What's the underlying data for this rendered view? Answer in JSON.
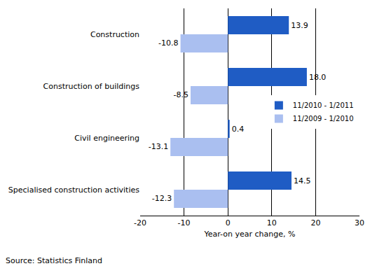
{
  "chart_data": {
    "type": "bar",
    "orientation": "horizontal",
    "categories": [
      "Construction",
      "Construction of buildings",
      "Civil engineering",
      "Specialised construction activities"
    ],
    "series": [
      {
        "name": "11/2010 - 1/2011",
        "color": "#1f5cc4",
        "values": [
          13.9,
          18.0,
          0.4,
          14.5
        ],
        "value_labels": [
          "13.9",
          "18.0",
          "0.4",
          "14.5"
        ]
      },
      {
        "name": "11/2009 - 1/2010",
        "color": "#aabff0",
        "values": [
          -10.8,
          -8.5,
          -13.1,
          -12.3
        ],
        "value_labels": [
          "-10.8",
          "-8.5",
          "-13.1",
          "-12.3"
        ]
      }
    ],
    "x_label": "Year-on year change, %",
    "annotations": [
      "Source: Statistics Finland"
    ],
    "xlim": [
      -20,
      30
    ],
    "xticks": [
      -20,
      -10,
      0,
      10,
      20,
      30
    ],
    "grid": true,
    "legend": "right",
    "data_labels": true
  }
}
